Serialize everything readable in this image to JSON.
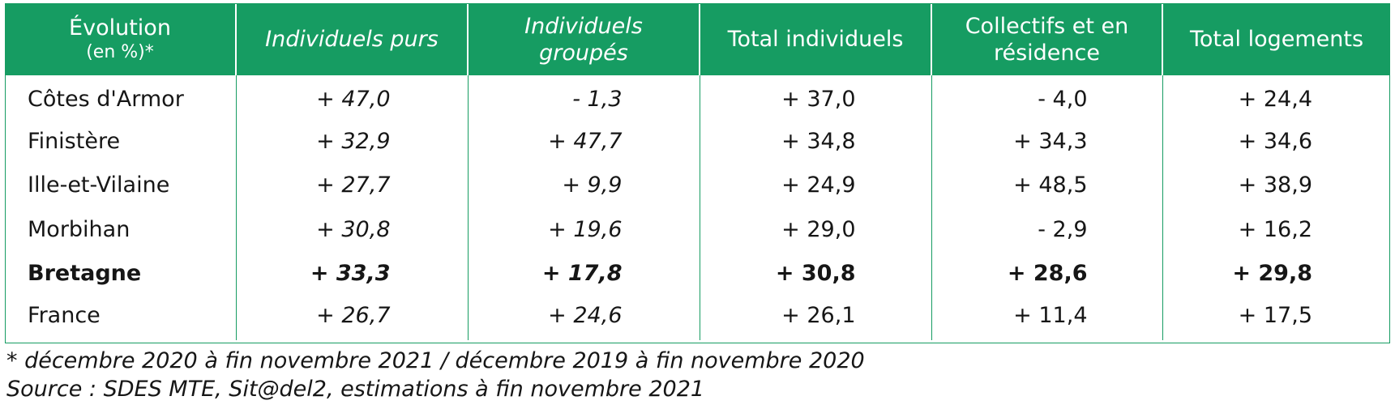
{
  "table": {
    "headers": [
      {
        "lines": [
          "Évolution",
          "(en %)*"
        ],
        "italic": false
      },
      {
        "lines": [
          "Individuels purs"
        ],
        "italic": true
      },
      {
        "lines": [
          "Individuels",
          "groupés"
        ],
        "italic": true
      },
      {
        "lines": [
          "Total individuels"
        ],
        "italic": false
      },
      {
        "lines": [
          "Collectifs et en",
          "résidence"
        ],
        "italic": false
      },
      {
        "lines": [
          "Total logements"
        ],
        "italic": false
      }
    ],
    "rows": [
      {
        "label": "Côtes d'Armor",
        "bold": false,
        "values": [
          "+ 47,0",
          "- 1,3",
          "+ 37,0",
          "- 4,0",
          "+ 24,4"
        ]
      },
      {
        "label": "Finistère",
        "bold": false,
        "values": [
          "+ 32,9",
          "+ 47,7",
          "+ 34,8",
          "+ 34,3",
          "+ 34,6"
        ]
      },
      {
        "label": "Ille-et-Vilaine",
        "bold": false,
        "values": [
          "+ 27,7",
          "+ 9,9",
          "+ 24,9",
          "+ 48,5",
          "+ 38,9"
        ]
      },
      {
        "label": "Morbihan",
        "bold": false,
        "values": [
          "+ 30,8",
          "+ 19,6",
          "+ 29,0",
          "- 2,9",
          "+ 16,2"
        ]
      },
      {
        "label": "Bretagne",
        "bold": true,
        "values": [
          "+ 33,3",
          "+ 17,8",
          "+ 30,8",
          "+ 28,6",
          "+ 29,8"
        ]
      },
      {
        "label": "France",
        "bold": false,
        "values": [
          "+ 26,7",
          "+ 24,6",
          "+ 26,1",
          "+ 11,4",
          "+ 17,5"
        ]
      }
    ]
  },
  "notes": {
    "footnote": "* décembre 2020 à fin novembre 2021 / décembre 2019 à fin novembre 2020",
    "source": "Source : SDES MTE, Sit@del2, estimations à fin novembre 2021"
  },
  "colors": {
    "header_background": "#169c62",
    "header_text": "#ffffff",
    "border": "#169c62",
    "text": "#161616"
  }
}
